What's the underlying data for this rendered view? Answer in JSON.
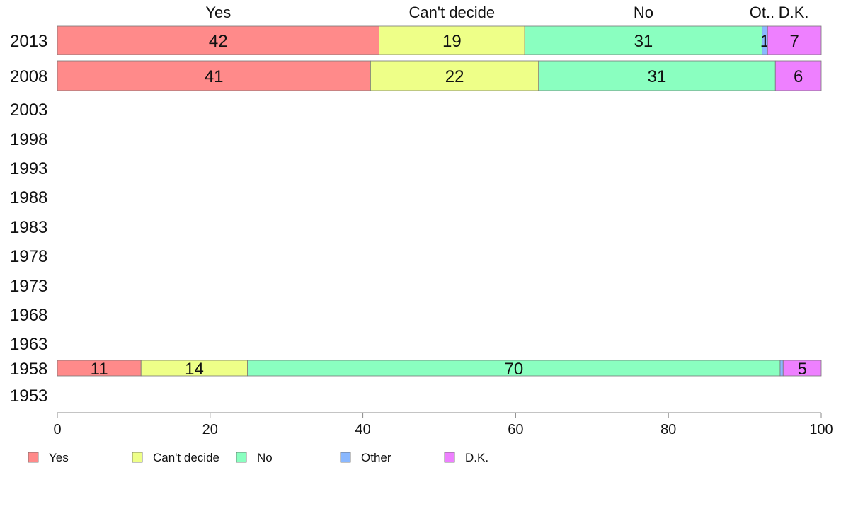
{
  "chart_data": {
    "type": "bar",
    "orientation": "horizontal",
    "stacked": true,
    "categories": [
      "2013",
      "2008",
      "2003",
      "1998",
      "1993",
      "1988",
      "1983",
      "1978",
      "1973",
      "1968",
      "1963",
      "1958",
      "1953"
    ],
    "series": [
      {
        "name": "Yes",
        "color": "#ff8a8a",
        "values": [
          42,
          41,
          null,
          null,
          null,
          null,
          null,
          null,
          null,
          null,
          null,
          11,
          null
        ],
        "labels": [
          "42",
          "41",
          "",
          "",
          "",
          "",
          "",
          "",
          "",
          "",
          "",
          "11",
          ""
        ]
      },
      {
        "name": "Can't decide",
        "color": "#eeff88",
        "values": [
          19,
          22,
          null,
          null,
          null,
          null,
          null,
          null,
          null,
          null,
          null,
          14,
          null
        ],
        "labels": [
          "19",
          "22",
          "",
          "",
          "",
          "",
          "",
          "",
          "",
          "",
          "",
          "14",
          ""
        ]
      },
      {
        "name": "No",
        "color": "#8affc0",
        "values": [
          31,
          31,
          null,
          null,
          null,
          null,
          null,
          null,
          null,
          null,
          null,
          70,
          null
        ],
        "labels": [
          "31",
          "31",
          "",
          "",
          "",
          "",
          "",
          "",
          "",
          "",
          "",
          "70",
          ""
        ]
      },
      {
        "name": "Other",
        "color": "#8ab8ff",
        "values": [
          0.7,
          0,
          null,
          null,
          null,
          null,
          null,
          null,
          null,
          null,
          null,
          0.4,
          null
        ],
        "labels": [
          "1",
          "",
          "",
          "",
          "",
          "",
          "",
          "",
          "",
          "",
          "",
          "",
          ""
        ]
      },
      {
        "name": "D.K.",
        "color": "#ee80ff",
        "values": [
          7,
          6,
          null,
          null,
          null,
          null,
          null,
          null,
          null,
          null,
          null,
          5,
          null
        ],
        "labels": [
          "7",
          "6",
          "",
          "",
          "",
          "",
          "",
          "",
          "",
          "",
          "",
          "5",
          ""
        ]
      }
    ],
    "column_headers": [
      "Yes",
      "Can't decide",
      "No",
      "Ot..",
      "D.K."
    ],
    "xlim": [
      0,
      100
    ],
    "x_ticks": [
      "0",
      "20",
      "40",
      "60",
      "80",
      "100"
    ],
    "grid": false,
    "legend": {
      "placement": "bottom-left",
      "entries": [
        "Yes",
        "Can't decide",
        "No",
        "Other",
        "D.K."
      ]
    }
  }
}
